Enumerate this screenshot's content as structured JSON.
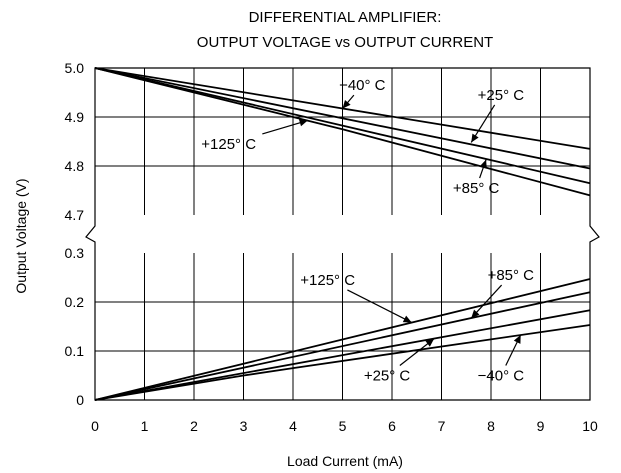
{
  "chart_data": {
    "type": "line",
    "title": [
      "DIFFERENTIAL AMPLIFIER:",
      "OUTPUT VOLTAGE vs OUTPUT CURRENT"
    ],
    "xlabel": "Load Current (mA)",
    "ylabel": "Output Voltage (V)",
    "xlim": [
      0,
      10
    ],
    "x_ticks": [
      "0",
      "1",
      "2",
      "3",
      "4",
      "5",
      "6",
      "7",
      "8",
      "9",
      "10"
    ],
    "upper_panel": {
      "ylim": [
        4.7,
        5.0
      ],
      "y_ticks": [
        "4.7",
        "4.8",
        "4.9",
        "5.0"
      ],
      "series": [
        {
          "name": "−40° C",
          "x": [
            0,
            10
          ],
          "y": [
            5.0,
            4.835
          ]
        },
        {
          "name": "+25° C",
          "x": [
            0,
            10
          ],
          "y": [
            5.0,
            4.795
          ]
        },
        {
          "name": "+85° C",
          "x": [
            0,
            10
          ],
          "y": [
            5.0,
            4.765
          ]
        },
        {
          "name": "+125° C",
          "x": [
            0,
            4,
            5,
            10
          ],
          "y": [
            5.0,
            4.9,
            4.875,
            4.74
          ]
        }
      ]
    },
    "lower_panel": {
      "ylim": [
        0,
        0.3
      ],
      "y_ticks": [
        "0",
        "0.1",
        "0.2",
        "0.3"
      ],
      "series": [
        {
          "name": "+125° C",
          "x": [
            0,
            10
          ],
          "y": [
            0,
            0.247
          ]
        },
        {
          "name": "+85° C",
          "x": [
            0,
            10
          ],
          "y": [
            0,
            0.22
          ]
        },
        {
          "name": "+25° C",
          "x": [
            0,
            10
          ],
          "y": [
            0,
            0.183
          ]
        },
        {
          "name": "−40° C",
          "x": [
            0,
            3,
            4,
            10
          ],
          "y": [
            0,
            0.05,
            0.065,
            0.153
          ]
        }
      ]
    },
    "annotations": [
      {
        "text": "−40° C",
        "panel": "upper",
        "at": [
          5.4,
          4.965
        ],
        "arrow_to": [
          5.0,
          4.917
        ]
      },
      {
        "text": "+25° C",
        "panel": "upper",
        "at": [
          8.2,
          4.945
        ],
        "arrow_to": [
          7.6,
          4.848
        ]
      },
      {
        "text": "+125° C",
        "panel": "upper",
        "at": [
          2.7,
          4.845
        ],
        "arrow_to": [
          4.3,
          4.893
        ]
      },
      {
        "text": "+85° C",
        "panel": "upper",
        "at": [
          7.7,
          4.755
        ],
        "arrow_to": [
          7.9,
          4.813
        ]
      },
      {
        "text": "+125° C",
        "panel": "lower",
        "at": [
          4.7,
          0.245
        ],
        "arrow_to": [
          6.4,
          0.158
        ]
      },
      {
        "text": "+85° C",
        "panel": "lower",
        "at": [
          8.4,
          0.255
        ],
        "arrow_to": [
          7.6,
          0.167
        ]
      },
      {
        "text": "+25° C",
        "panel": "lower",
        "at": [
          5.9,
          0.05
        ],
        "arrow_to": [
          6.85,
          0.125
        ]
      },
      {
        "text": "−40° C",
        "panel": "lower",
        "at": [
          8.2,
          0.05
        ],
        "arrow_to": [
          8.6,
          0.133
        ]
      }
    ],
    "grid": true,
    "axis_break": true
  }
}
